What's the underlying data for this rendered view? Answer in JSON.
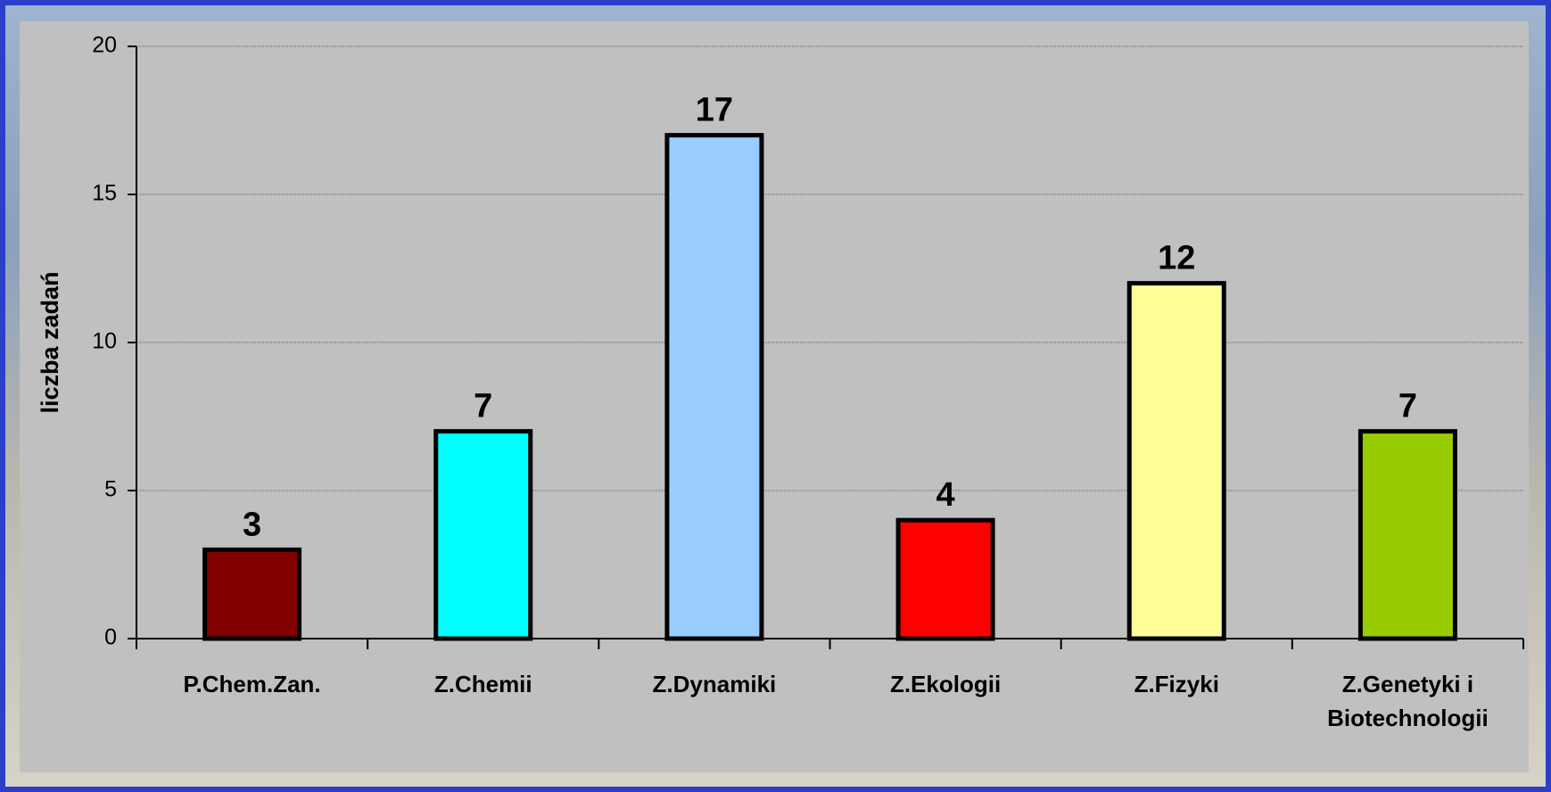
{
  "chart_data": {
    "type": "bar",
    "y_label": "liczba zadań",
    "categories": [
      "P.Chem.Zan.",
      "Z.Chemii",
      "Z.Dynamiki",
      "Z.Ekologii",
      "Z.Fizyki",
      "Z.Genetyki i Biotechnologii"
    ],
    "values": [
      3,
      7,
      17,
      4,
      12,
      7
    ],
    "colors": [
      "#800000",
      "#00ffff",
      "#99ccff",
      "#ff0000",
      "#ffff99",
      "#99cc00"
    ],
    "ylim": [
      0,
      20
    ],
    "yticks": [
      0,
      5,
      10,
      15,
      20
    ],
    "grid": true
  }
}
